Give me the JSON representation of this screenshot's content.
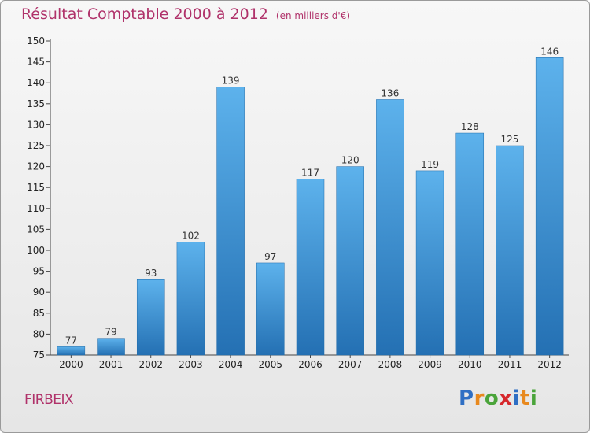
{
  "title": "Résultat Comptable 2000 à 2012",
  "subtitle": "(en milliers d'€)",
  "commune": "FIRBEIX",
  "brand": {
    "letters": [
      "P",
      "r",
      "o",
      "x",
      "i",
      "t",
      "i"
    ],
    "colors": [
      "#2f6fc4",
      "#e8891e",
      "#4aa43a",
      "#d6282c",
      "#2f6fc4",
      "#e8891e",
      "#4aa43a"
    ]
  },
  "colors": {
    "bar_top": "#5db2ec",
    "bar_bottom": "#2470b3",
    "title": "#b0326a"
  },
  "chart_data": {
    "type": "bar",
    "title": "Résultat Comptable 2000 à 2012",
    "xlabel": "",
    "ylabel": "",
    "categories": [
      "2000",
      "2001",
      "2002",
      "2003",
      "2004",
      "2005",
      "2006",
      "2007",
      "2008",
      "2009",
      "2010",
      "2011",
      "2012"
    ],
    "values": [
      77,
      79,
      93,
      102,
      139,
      97,
      117,
      120,
      136,
      119,
      128,
      125,
      146
    ],
    "ylim": [
      75,
      150
    ],
    "yticks": [
      75,
      80,
      85,
      90,
      95,
      100,
      105,
      110,
      115,
      120,
      125,
      130,
      135,
      140,
      145,
      150
    ],
    "grid": false,
    "legend": "none"
  }
}
